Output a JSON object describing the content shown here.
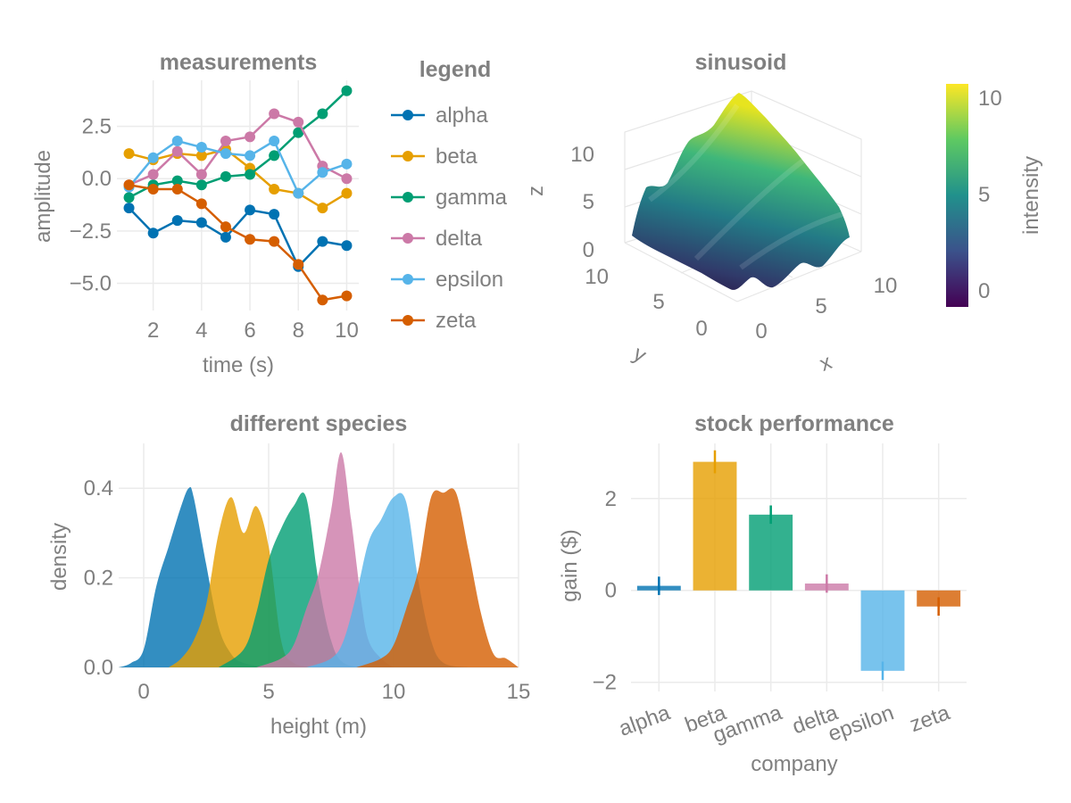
{
  "colors": {
    "alpha": "#0072b2",
    "beta": "#e69f00",
    "gamma": "#009e73",
    "delta": "#cc79a7",
    "epsilon": "#56b4e9",
    "zeta": "#d55e00"
  },
  "chart_data": [
    {
      "type": "line",
      "title": "measurements",
      "xlabel": "time (s)",
      "ylabel": "amplitude",
      "x": [
        1,
        2,
        3,
        4,
        5,
        6,
        7,
        8,
        9,
        10
      ],
      "xticks": [
        2,
        4,
        6,
        8,
        10
      ],
      "yticks": [
        2.5,
        0.0,
        -2.5,
        -5.0
      ],
      "ytick_labels": [
        "2.5",
        "0.0",
        "−2.5",
        "−5.0"
      ],
      "xlim": [
        0.5,
        10.5
      ],
      "ylim": [
        -6.3,
        4.7
      ],
      "grid": true,
      "series": [
        {
          "name": "alpha",
          "values": [
            -1.4,
            -2.6,
            -2.0,
            -2.1,
            -2.8,
            -1.5,
            -1.7,
            -4.2,
            -3.0,
            -3.2
          ]
        },
        {
          "name": "beta",
          "values": [
            1.2,
            0.9,
            1.2,
            1.1,
            1.4,
            0.5,
            -0.5,
            -0.7,
            -1.4,
            -0.7
          ]
        },
        {
          "name": "gamma",
          "values": [
            -0.9,
            -0.3,
            -0.1,
            -0.3,
            0.1,
            0.2,
            1.1,
            2.2,
            3.1,
            4.2
          ]
        },
        {
          "name": "delta",
          "values": [
            -0.3,
            0.2,
            1.3,
            0.2,
            1.8,
            2.0,
            3.1,
            2.7,
            0.6,
            0.0
          ]
        },
        {
          "name": "epsilon",
          "values": [
            -0.4,
            1.0,
            1.8,
            1.5,
            1.2,
            1.1,
            1.8,
            -0.7,
            0.3,
            0.7
          ]
        },
        {
          "name": "zeta",
          "values": [
            -0.3,
            -0.5,
            -0.5,
            -1.2,
            -2.3,
            -2.9,
            -3.0,
            -4.1,
            -5.8,
            -5.6
          ]
        }
      ]
    },
    {
      "type": "surface",
      "title": "sinusoid",
      "xlabel": "x",
      "ylabel": "y",
      "zlabel": "z",
      "colorbar_label": "intensity",
      "xticks": [
        "0",
        "5",
        "10"
      ],
      "yticks": [
        "0",
        "5",
        "10"
      ],
      "zticks": [
        "0",
        "5",
        "10"
      ],
      "colorbar_ticks": [
        "0",
        "5",
        "10"
      ],
      "colorbar_range": [
        -1,
        11
      ],
      "xlim": [
        0,
        10
      ],
      "ylim": [
        0,
        10
      ],
      "zlim": [
        -1,
        11
      ],
      "colormap": "viridis"
    },
    {
      "type": "area",
      "title": "different species",
      "xlabel": "height (m)",
      "ylabel": "density",
      "xticks": [
        0,
        5,
        10,
        15
      ],
      "yticks": [
        0.0,
        0.2,
        0.4
      ],
      "ytick_labels": [
        "0.0",
        "0.2",
        "0.4"
      ],
      "xlim": [
        -1,
        15
      ],
      "ylim": [
        0,
        0.5
      ],
      "grid": true,
      "series": [
        {
          "name": "alpha",
          "x": [
            -1,
            -0.5,
            0,
            0.5,
            1,
            1.5,
            1.8,
            2,
            2.5,
            3,
            3.5,
            4,
            5
          ],
          "values": [
            0,
            0.01,
            0.04,
            0.18,
            0.27,
            0.36,
            0.4,
            0.38,
            0.23,
            0.09,
            0.03,
            0.01,
            0
          ]
        },
        {
          "name": "beta",
          "x": [
            1,
            1.5,
            2,
            2.5,
            3,
            3.5,
            4,
            4.5,
            5,
            5.5,
            6,
            7
          ],
          "values": [
            0,
            0.02,
            0.06,
            0.14,
            0.3,
            0.38,
            0.3,
            0.36,
            0.27,
            0.06,
            0.01,
            0
          ]
        },
        {
          "name": "gamma",
          "x": [
            3,
            4,
            4.5,
            5,
            5.5,
            6,
            6.5,
            7,
            7.5,
            8,
            9
          ],
          "values": [
            0,
            0.04,
            0.12,
            0.24,
            0.31,
            0.36,
            0.38,
            0.19,
            0.06,
            0.01,
            0
          ]
        },
        {
          "name": "delta",
          "x": [
            4.5,
            5.5,
            6,
            6.5,
            7,
            7.5,
            7.9,
            8.3,
            8.7,
            9,
            9.5,
            10
          ],
          "values": [
            0,
            0.02,
            0.05,
            0.13,
            0.21,
            0.35,
            0.48,
            0.33,
            0.15,
            0.06,
            0.02,
            0
          ]
        },
        {
          "name": "epsilon",
          "x": [
            6.5,
            7.5,
            8,
            8.5,
            9,
            9.5,
            10,
            10.5,
            11,
            11.5,
            12,
            13
          ],
          "values": [
            0,
            0.02,
            0.06,
            0.16,
            0.28,
            0.33,
            0.38,
            0.37,
            0.19,
            0.06,
            0.01,
            0
          ]
        },
        {
          "name": "zeta",
          "x": [
            8.5,
            9.5,
            10,
            10.5,
            11,
            11.5,
            12,
            12.5,
            13,
            13.5,
            14,
            14.5,
            15
          ],
          "values": [
            0,
            0.02,
            0.05,
            0.13,
            0.22,
            0.38,
            0.39,
            0.39,
            0.26,
            0.12,
            0.03,
            0.02,
            0
          ]
        }
      ]
    },
    {
      "type": "bar",
      "title": "stock performance",
      "xlabel": "company",
      "ylabel": "gain ($)",
      "categories": [
        "alpha",
        "beta",
        "gamma",
        "delta",
        "epsilon",
        "zeta"
      ],
      "values": [
        0.1,
        2.8,
        1.65,
        0.15,
        -1.75,
        -0.35
      ],
      "errors": [
        0.2,
        0.25,
        0.2,
        0.2,
        0.2,
        0.2
      ],
      "yticks": [
        2,
        0,
        -2
      ],
      "ytick_labels": [
        "2",
        "0",
        "−2"
      ],
      "ylim": [
        -2.2,
        3.2
      ],
      "grid": true
    }
  ],
  "legend": {
    "title": "legend",
    "entries": [
      "alpha",
      "beta",
      "gamma",
      "delta",
      "epsilon",
      "zeta"
    ]
  }
}
